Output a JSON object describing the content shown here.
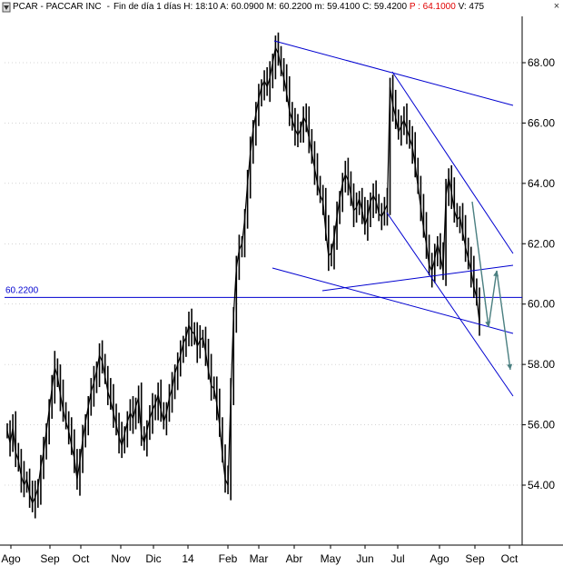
{
  "header": {
    "symbol": "PCAR - PACCAR INC",
    "period": "Fin de día 1 días",
    "h": "H: 18:10",
    "a": "A: 60.0900",
    "m": "M: 60.2200",
    "m2": "m: 59.4100",
    "c": "C: 59.4200",
    "p": "P : 64.1000",
    "v": "V: 475",
    "close_glyph": "×"
  },
  "colors": {
    "price": "#000000",
    "trendline": "#0000d0",
    "projection": "#4a7f80",
    "grid": "#aaaaaa"
  },
  "chart_data": {
    "type": "line",
    "title": "",
    "xlabel": "",
    "ylabel": "",
    "ylim": [
      53.0,
      69.5
    ],
    "y_ticks": [
      "54.00",
      "56.00",
      "58.00",
      "60.00",
      "62.00",
      "64.00",
      "66.00",
      "68.00"
    ],
    "x_ticks": [
      "Ago",
      "Sep",
      "Oct",
      "Nov",
      "Dic",
      "14",
      "Feb",
      "Mar",
      "Abr",
      "May",
      "Jun",
      "Jul",
      "Ago",
      "Sep",
      "Oct"
    ],
    "grid": true,
    "ref_line": {
      "value": 60.22,
      "label": "60.2200"
    },
    "series": [
      {
        "values": [
          55.8,
          55.4,
          55.9,
          55.1,
          54.8,
          54.3,
          54.0,
          54.2,
          53.7,
          53.4,
          53.6,
          53.9,
          54.6,
          55.1,
          55.8,
          56.5,
          57.2,
          57.9,
          57.6,
          57.0,
          56.5,
          56.1,
          55.8,
          55.3,
          54.9,
          54.2,
          54.8,
          55.5,
          56.1,
          56.6,
          57.1,
          57.4,
          57.8,
          58.3,
          58.1,
          57.6,
          57.1,
          56.8,
          56.4,
          56.0,
          55.6,
          55.3,
          55.7,
          56.1,
          56.4,
          56.2,
          56.6,
          56.9,
          55.7,
          55.4,
          55.8,
          56.2,
          56.5,
          56.7,
          57.0,
          56.5,
          56.1,
          56.4,
          56.9,
          57.2,
          57.7,
          58.0,
          58.3,
          58.7,
          58.9,
          59.3,
          59.1,
          59.0,
          58.6,
          58.8,
          58.9,
          58.4,
          57.8,
          57.3,
          57.2,
          56.7,
          56.0,
          55.0,
          54.2,
          54.0,
          57.0,
          59.6,
          61.2,
          61.8,
          62.0,
          62.8,
          64.0,
          65.0,
          65.8,
          66.3,
          66.8,
          67.2,
          67.4,
          67.2,
          67.5,
          68.0,
          68.5,
          68.3,
          67.8,
          67.5,
          67.0,
          66.4,
          66.1,
          65.8,
          65.6,
          65.8,
          66.2,
          66.0,
          65.5,
          65.0,
          64.5,
          64.0,
          63.6,
          63.4,
          62.4,
          61.6,
          61.7,
          62.2,
          62.9,
          63.5,
          64.0,
          64.3,
          64.1,
          63.6,
          63.1,
          63.2,
          63.5,
          63.1,
          62.6,
          62.9,
          63.4,
          63.6,
          63.4,
          63.0,
          62.9,
          63.1,
          63.3,
          67.2,
          66.6,
          66.2,
          65.7,
          65.9,
          66.1,
          65.8,
          65.5,
          65.2,
          64.6,
          63.9,
          63.2,
          62.5,
          62.0,
          61.3,
          61.1,
          61.5,
          62.0,
          61.6,
          61.1,
          63.6,
          64.2,
          63.7,
          63.1,
          62.8,
          62.9,
          62.4,
          61.9,
          61.5,
          61.1,
          60.6,
          60.2,
          59.4
        ],
        "x_range": [
          0,
          1
        ]
      }
    ],
    "trendlines": [
      {
        "name": "upper",
        "x": [
          0.455,
          0.925
        ],
        "y": [
          68.7,
          66.4
        ]
      },
      {
        "name": "lower",
        "x": [
          0.455,
          0.925
        ],
        "y": [
          60.8,
          58.7
        ]
      },
      {
        "name": "channel-upper",
        "x": [
          0.703,
          0.925
        ],
        "y": [
          67.6,
          61.2
        ]
      },
      {
        "name": "channel-lower",
        "x": [
          0.703,
          0.925
        ],
        "y": [
          62.7,
          56.6
        ]
      },
      {
        "name": "support",
        "x": [
          0.575,
          0.925
        ],
        "y": [
          60.2,
          60.9
        ]
      }
    ],
    "projection": {
      "x": [
        0.842,
        0.876,
        0.89,
        0.92
      ],
      "y": [
        63.0,
        59.0,
        60.9,
        57.5
      ]
    }
  }
}
